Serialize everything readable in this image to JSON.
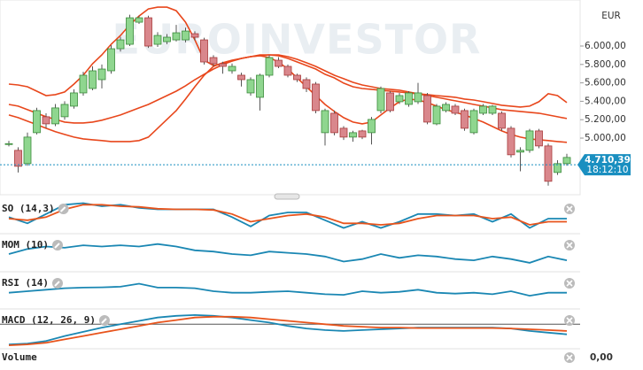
{
  "chart_data": [
    {
      "type": "candlestick",
      "currency": "EUR",
      "watermark": "EUROINVESTOR",
      "ylim": [
        4433,
        6452
      ],
      "yticks": [
        {
          "value": 5000,
          "label": "5.000,00"
        },
        {
          "value": 5200,
          "label": "5.200,00"
        },
        {
          "value": 5400,
          "label": "5.400,00"
        },
        {
          "value": 5600,
          "label": "5.600,00"
        },
        {
          "value": 5800,
          "label": "5.800,00"
        },
        {
          "value": 6000,
          "label": "6.000,00"
        }
      ],
      "up_color": "#8fd68f",
      "down_color": "#d9878c",
      "open": [
        4934,
        4867,
        4723,
        5059,
        5232,
        5155,
        5232,
        5347,
        5491,
        5539,
        5635,
        5731,
        5971,
        6019,
        6259,
        6307,
        6019,
        6048,
        6067,
        6067,
        6134,
        6067,
        5875,
        5808,
        5731,
        5683,
        5491,
        5443,
        5683,
        5846,
        5779,
        5683,
        5635,
        5587,
        5059,
        5270,
        5107,
        5011,
        5078,
        5059,
        5299,
        5491,
        5395,
        5366,
        5395,
        5462,
        5155,
        5299,
        5347,
        5299,
        5059,
        5270,
        5270,
        5270,
        5107,
        4848,
        4867,
        5078,
        4915,
        4627,
        4723
      ],
      "high": [
        4970,
        4900,
        5060,
        5330,
        5270,
        5370,
        5400,
        5530,
        5720,
        5780,
        5800,
        6010,
        6100,
        6340,
        6330,
        6330,
        6150,
        6130,
        6230,
        6200,
        6160,
        6090,
        5900,
        5830,
        5810,
        5710,
        5660,
        5700,
        5900,
        5880,
        5800,
        5700,
        5660,
        5610,
        5320,
        5300,
        5130,
        5080,
        5090,
        5230,
        5560,
        5510,
        5490,
        5510,
        5600,
        5490,
        5370,
        5390,
        5370,
        5320,
        5320,
        5370,
        5360,
        5290,
        5130,
        4900,
        5100,
        5100,
        4940,
        4760,
        4830
      ],
      "low": [
        4910,
        4627,
        4700,
        5040,
        5110,
        5130,
        5200,
        5320,
        5460,
        5520,
        5540,
        5700,
        5940,
        6000,
        6240,
        5980,
        5990,
        6020,
        6050,
        6040,
        6060,
        5800,
        5780,
        5700,
        5700,
        5560,
        5460,
        5300,
        5660,
        5760,
        5660,
        5610,
        5500,
        5270,
        4920,
        5030,
        4980,
        4960,
        4990,
        4930,
        5270,
        5280,
        5370,
        5340,
        5370,
        5150,
        5140,
        5280,
        5250,
        5080,
        5040,
        5250,
        5250,
        5080,
        4790,
        4640,
        4840,
        4890,
        4483,
        4600,
        4700
      ],
      "close": [
        4940,
        4694,
        5011,
        5299,
        5155,
        5328,
        5366,
        5491,
        5683,
        5731,
        5750,
        5971,
        6067,
        6307,
        6307,
        6000,
        6115,
        6096,
        6144,
        6163,
        6096,
        5827,
        5808,
        5779,
        5779,
        5635,
        5635,
        5683,
        5875,
        5779,
        5683,
        5635,
        5539,
        5299,
        5299,
        5059,
        5011,
        5059,
        5011,
        5203,
        5539,
        5299,
        5462,
        5491,
        5491,
        5174,
        5347,
        5366,
        5270,
        5107,
        5299,
        5347,
        5347,
        5107,
        4819,
        4867,
        5078,
        4915,
        4531,
        4723,
        4790
      ],
      "bands": [
        {
          "color": "#e8471c",
          "values": [
            5587,
            5577,
            5558,
            5510,
            5462,
            5472,
            5501,
            5587,
            5683,
            5808,
            5904,
            6019,
            6115,
            6230,
            6326,
            6403,
            6422,
            6422,
            6384,
            6259,
            6067,
            5846,
            5789,
            5808,
            5837,
            5866,
            5885,
            5904,
            5904,
            5894,
            5866,
            5827,
            5789,
            5750,
            5693,
            5654,
            5597,
            5558,
            5539,
            5530,
            5520,
            5510,
            5501,
            5491,
            5482,
            5472,
            5462,
            5453,
            5443,
            5424,
            5414,
            5395,
            5376,
            5357,
            5347,
            5338,
            5347,
            5395,
            5482,
            5462,
            5386
          ]
        },
        {
          "color": "#e8471c",
          "values": [
            5366,
            5347,
            5309,
            5270,
            5232,
            5203,
            5174,
            5165,
            5165,
            5174,
            5194,
            5222,
            5251,
            5290,
            5328,
            5366,
            5414,
            5462,
            5510,
            5568,
            5635,
            5693,
            5750,
            5798,
            5837,
            5866,
            5885,
            5894,
            5904,
            5904,
            5885,
            5856,
            5818,
            5779,
            5731,
            5683,
            5645,
            5606,
            5577,
            5558,
            5539,
            5530,
            5520,
            5501,
            5482,
            5462,
            5443,
            5424,
            5405,
            5386,
            5366,
            5347,
            5328,
            5309,
            5299,
            5290,
            5280,
            5270,
            5251,
            5232,
            5213
          ]
        },
        {
          "color": "#e8471c",
          "values": [
            5251,
            5222,
            5184,
            5146,
            5107,
            5069,
            5040,
            5011,
            4992,
            4982,
            4973,
            4963,
            4963,
            4963,
            4973,
            5011,
            5107,
            5203,
            5299,
            5424,
            5558,
            5683,
            5779,
            5818,
            5846,
            5866,
            5885,
            5894,
            5875,
            5827,
            5750,
            5654,
            5558,
            5462,
            5366,
            5290,
            5222,
            5174,
            5155,
            5174,
            5251,
            5328,
            5395,
            5424,
            5414,
            5386,
            5347,
            5309,
            5280,
            5251,
            5213,
            5174,
            5126,
            5078,
            5040,
            5011,
            4992,
            4982,
            4973,
            4963,
            4954
          ]
        }
      ],
      "last": 4710.39,
      "last_label": "4.710,39",
      "last_time": "18:12:10",
      "last_color": "#1a8fc0"
    },
    {
      "type": "line",
      "title": "SO (14,3)",
      "ylim": [
        0,
        100
      ],
      "series": [
        {
          "color": "#1a87b3",
          "values": [
            45,
            25,
            55,
            85,
            90,
            80,
            85,
            75,
            70,
            70,
            70,
            70,
            45,
            15,
            50,
            60,
            60,
            35,
            10,
            30,
            10,
            30,
            55,
            55,
            50,
            55,
            30,
            55,
            10,
            40,
            40
          ]
        },
        {
          "color": "#e8541c",
          "values": [
            40,
            35,
            45,
            70,
            85,
            85,
            80,
            78,
            72,
            70,
            70,
            68,
            55,
            30,
            40,
            50,
            55,
            45,
            25,
            25,
            20,
            25,
            40,
            50,
            50,
            50,
            40,
            45,
            20,
            30,
            30
          ]
        }
      ]
    },
    {
      "type": "line",
      "title": "MOM (10)",
      "ylim": [
        -600,
        600
      ],
      "series": [
        {
          "color": "#1a87b3",
          "values": [
            0,
            200,
            300,
            250,
            350,
            300,
            350,
            300,
            400,
            300,
            150,
            100,
            0,
            -50,
            100,
            50,
            0,
            -100,
            -300,
            -200,
            0,
            -150,
            -50,
            -100,
            -200,
            -250,
            -100,
            -200,
            -350,
            -100,
            -250
          ]
        }
      ]
    },
    {
      "type": "line",
      "title": "RSI (14)",
      "ylim": [
        0,
        100
      ],
      "series": [
        {
          "color": "#1a87b3",
          "values": [
            45,
            50,
            55,
            60,
            62,
            63,
            65,
            75,
            62,
            62,
            60,
            50,
            45,
            45,
            48,
            50,
            45,
            40,
            38,
            50,
            45,
            48,
            55,
            45,
            42,
            45,
            40,
            50,
            35,
            45,
            45
          ]
        }
      ]
    },
    {
      "type": "line",
      "title": "MACD (12, 26, 9)",
      "ylim": [
        -260,
        140
      ],
      "zero_line": true,
      "series": [
        {
          "color": "#1a87b3",
          "values": [
            -240,
            -230,
            -200,
            -140,
            -90,
            -40,
            0,
            40,
            80,
            100,
            110,
            100,
            80,
            50,
            20,
            -20,
            -50,
            -70,
            -80,
            -70,
            -60,
            -50,
            -40,
            -40,
            -40,
            -40,
            -40,
            -50,
            -80,
            -100,
            -120
          ]
        },
        {
          "color": "#e8541c",
          "values": [
            -250,
            -240,
            -220,
            -180,
            -140,
            -100,
            -60,
            -20,
            20,
            50,
            80,
            90,
            90,
            80,
            60,
            40,
            20,
            0,
            -20,
            -30,
            -40,
            -40,
            -45,
            -45,
            -45,
            -45,
            -45,
            -50,
            -60,
            -70,
            -80
          ]
        }
      ]
    },
    {
      "type": "volume",
      "title": "Volume",
      "label": "0,00"
    }
  ]
}
